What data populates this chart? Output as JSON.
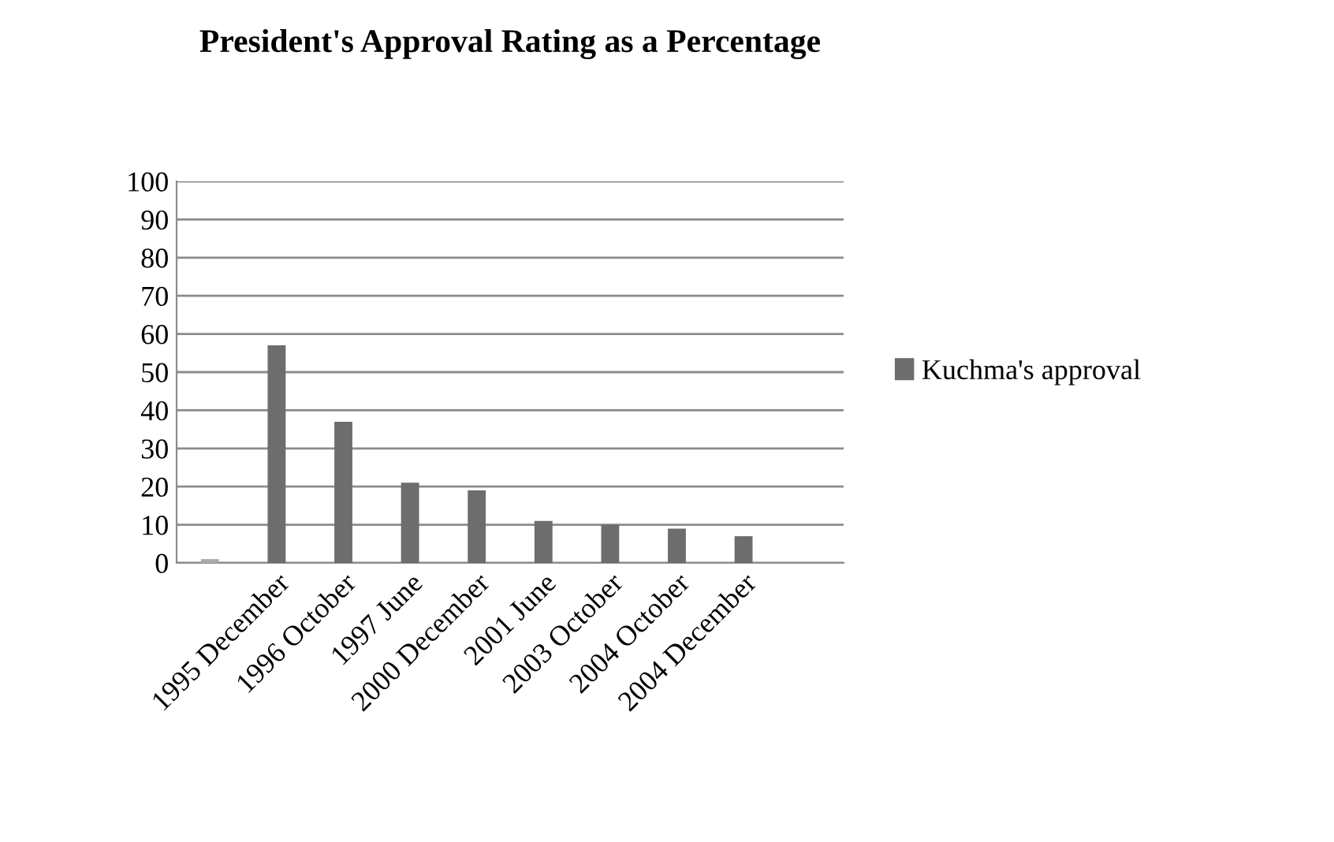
{
  "chart_data": {
    "type": "bar",
    "title": "President's Approval Rating as a Percentage",
    "categories": [
      null,
      "1995 December",
      "1996 October",
      "1997 June",
      "2000 December",
      "2001 June",
      "2003 October",
      "2004 October",
      "2004 December",
      null
    ],
    "series": [
      {
        "name": "Kuchma's approval",
        "color": "#6d6d6d",
        "colors": [
          "#ababab",
          "#6d6d6d",
          "#6d6d6d",
          "#6d6d6d",
          "#6d6d6d",
          "#6d6d6d",
          "#6d6d6d",
          "#6d6d6d",
          "#6d6d6d",
          "#6d6d6d"
        ],
        "values": [
          1,
          57,
          37,
          21,
          19,
          11,
          10,
          9,
          7,
          null
        ]
      }
    ],
    "ylim": [
      0,
      100
    ],
    "yticks": [
      0,
      10,
      20,
      30,
      40,
      50,
      60,
      70,
      80,
      90,
      100
    ],
    "grid": "y",
    "legend": "right"
  }
}
